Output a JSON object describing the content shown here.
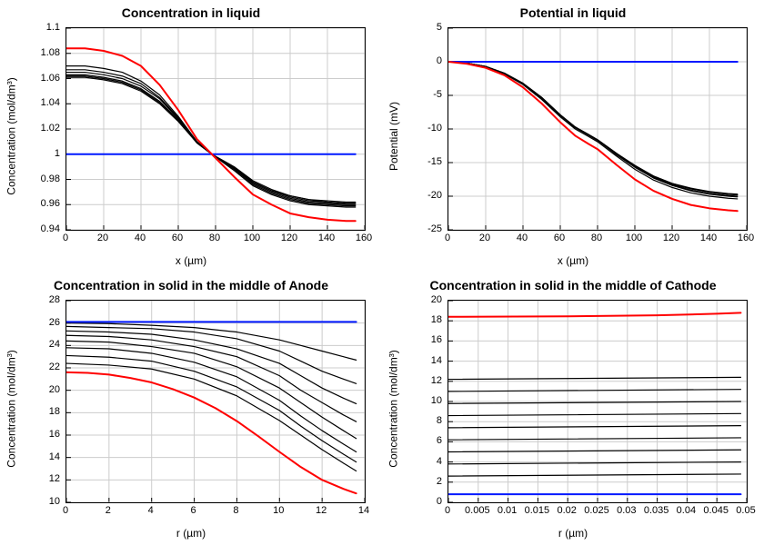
{
  "background_color": "#ffffff",
  "grid_color": "#cccccc",
  "axis_color": "#000000",
  "text_color": "#000000",
  "colors": {
    "blue": "#0018ff",
    "red": "#ff0000",
    "black": "#000000"
  },
  "line_width_thick": 2.0,
  "line_width_thin": 1.2,
  "font": {
    "title_size": 14,
    "label_size": 12,
    "tick_size": 11
  },
  "panels": {
    "conc_liquid": {
      "title": "Concentration in liquid",
      "xlabel": "x (µm)",
      "ylabel": "Concentration (mol/dm³)",
      "xlim": [
        0,
        160
      ],
      "xtick_step": 20,
      "ylim": [
        0.94,
        1.1
      ],
      "yticks": [
        0.94,
        0.96,
        0.98,
        1,
        1.02,
        1.04,
        1.06,
        1.08,
        1.1
      ],
      "blue_series": {
        "x": [
          0,
          155
        ],
        "y": [
          1.0,
          1.0
        ]
      },
      "red_series": {
        "x": [
          0,
          10,
          20,
          30,
          40,
          50,
          60,
          70,
          78,
          90,
          100,
          110,
          120,
          130,
          140,
          150,
          155
        ],
        "y": [
          1.084,
          1.084,
          1.082,
          1.078,
          1.07,
          1.055,
          1.035,
          1.012,
          1.0,
          0.982,
          0.968,
          0.96,
          0.953,
          0.95,
          0.948,
          0.947,
          0.947
        ]
      },
      "black_series": [
        {
          "x": [
            0,
            10,
            20,
            30,
            40,
            50,
            60,
            70,
            78,
            90,
            100,
            110,
            120,
            130,
            140,
            150,
            155
          ],
          "y": [
            1.07,
            1.07,
            1.068,
            1.065,
            1.058,
            1.047,
            1.03,
            1.01,
            1.0,
            0.987,
            0.975,
            0.968,
            0.963,
            0.96,
            0.959,
            0.958,
            0.958
          ]
        },
        {
          "x": [
            0,
            10,
            20,
            30,
            40,
            50,
            60,
            70,
            78,
            90,
            100,
            110,
            120,
            130,
            140,
            150,
            155
          ],
          "y": [
            1.067,
            1.067,
            1.065,
            1.062,
            1.056,
            1.045,
            1.029,
            1.01,
            1.0,
            0.988,
            0.976,
            0.969,
            0.964,
            0.961,
            0.96,
            0.959,
            0.959
          ]
        },
        {
          "x": [
            0,
            10,
            20,
            30,
            40,
            50,
            60,
            70,
            78,
            90,
            100,
            110,
            120,
            130,
            140,
            150,
            155
          ],
          "y": [
            1.065,
            1.065,
            1.063,
            1.06,
            1.054,
            1.044,
            1.028,
            1.009,
            1.0,
            0.989,
            0.977,
            0.97,
            0.965,
            0.962,
            0.961,
            0.96,
            0.96
          ]
        },
        {
          "x": [
            0,
            10,
            20,
            30,
            40,
            50,
            60,
            70,
            78,
            90,
            100,
            110,
            120,
            130,
            140,
            150,
            155
          ],
          "y": [
            1.063,
            1.063,
            1.061,
            1.058,
            1.052,
            1.042,
            1.027,
            1.009,
            1.0,
            0.989,
            0.978,
            0.971,
            0.966,
            0.963,
            0.962,
            0.961,
            0.961
          ]
        },
        {
          "x": [
            0,
            10,
            20,
            30,
            40,
            50,
            60,
            70,
            78,
            90,
            100,
            110,
            120,
            130,
            140,
            150,
            155
          ],
          "y": [
            1.062,
            1.062,
            1.06,
            1.057,
            1.051,
            1.041,
            1.027,
            1.009,
            1.0,
            0.989,
            0.978,
            0.971,
            0.967,
            0.964,
            0.962,
            0.961,
            0.961
          ]
        },
        {
          "x": [
            0,
            10,
            20,
            30,
            40,
            50,
            60,
            70,
            78,
            90,
            100,
            110,
            120,
            130,
            140,
            150,
            155
          ],
          "y": [
            1.061,
            1.061,
            1.059,
            1.056,
            1.05,
            1.04,
            1.026,
            1.009,
            1.0,
            0.99,
            0.979,
            0.972,
            0.967,
            0.964,
            0.963,
            0.962,
            0.962
          ]
        }
      ]
    },
    "potential_liquid": {
      "title": "Potential in liquid",
      "xlabel": "x (µm)",
      "ylabel": "Potential (mV)",
      "xlim": [
        0,
        160
      ],
      "xtick_step": 20,
      "ylim": [
        -25,
        5
      ],
      "yticks": [
        -25,
        -20,
        -15,
        -10,
        -5,
        0,
        5
      ],
      "blue_series": {
        "x": [
          0,
          155
        ],
        "y": [
          0,
          0
        ]
      },
      "red_series": {
        "x": [
          0,
          10,
          20,
          30,
          40,
          50,
          60,
          68,
          75,
          80,
          90,
          100,
          110,
          120,
          130,
          140,
          150,
          155
        ],
        "y": [
          0,
          -0.3,
          -0.9,
          -2.0,
          -3.8,
          -6.2,
          -9.0,
          -11.0,
          -12.2,
          -13.0,
          -15.3,
          -17.5,
          -19.2,
          -20.4,
          -21.3,
          -21.8,
          -22.1,
          -22.2
        ]
      },
      "black_series": [
        {
          "x": [
            0,
            10,
            20,
            30,
            40,
            50,
            60,
            68,
            75,
            80,
            90,
            100,
            110,
            120,
            130,
            140,
            150,
            155
          ],
          "y": [
            0,
            -0.2,
            -0.8,
            -1.8,
            -3.4,
            -5.6,
            -8.2,
            -10.0,
            -11.1,
            -11.9,
            -14.0,
            -16.0,
            -17.6,
            -18.7,
            -19.5,
            -20.0,
            -20.3,
            -20.4
          ]
        },
        {
          "x": [
            0,
            10,
            20,
            30,
            40,
            50,
            60,
            68,
            75,
            80,
            90,
            100,
            110,
            120,
            130,
            140,
            150,
            155
          ],
          "y": [
            0,
            -0.2,
            -0.7,
            -1.7,
            -3.3,
            -5.4,
            -8.0,
            -9.8,
            -10.9,
            -11.7,
            -13.7,
            -15.6,
            -17.2,
            -18.3,
            -19.1,
            -19.6,
            -19.9,
            -20.0
          ]
        },
        {
          "x": [
            0,
            10,
            20,
            30,
            40,
            50,
            60,
            68,
            75,
            80,
            90,
            100,
            110,
            120,
            130,
            140,
            150,
            155
          ],
          "y": [
            0,
            -0.2,
            -0.7,
            -1.7,
            -3.2,
            -5.3,
            -7.9,
            -9.7,
            -10.8,
            -11.6,
            -13.6,
            -15.5,
            -17.0,
            -18.1,
            -18.9,
            -19.4,
            -19.7,
            -19.8
          ]
        },
        {
          "x": [
            0,
            10,
            20,
            30,
            40,
            50,
            60,
            68,
            75,
            80,
            90,
            100,
            110,
            120,
            130,
            140,
            150,
            155
          ],
          "y": [
            0,
            -0.2,
            -0.7,
            -1.7,
            -3.2,
            -5.3,
            -7.9,
            -9.7,
            -10.8,
            -11.6,
            -13.6,
            -15.4,
            -17.0,
            -18.1,
            -18.8,
            -19.3,
            -19.6,
            -19.7
          ]
        },
        {
          "x": [
            0,
            10,
            20,
            30,
            40,
            50,
            60,
            68,
            75,
            80,
            90,
            100,
            110,
            120,
            130,
            140,
            150,
            155
          ],
          "y": [
            0,
            -0.2,
            -0.7,
            -1.7,
            -3.2,
            -5.3,
            -7.9,
            -9.7,
            -10.8,
            -11.6,
            -13.6,
            -15.5,
            -17.1,
            -18.2,
            -18.9,
            -19.4,
            -19.7,
            -19.8
          ]
        },
        {
          "x": [
            0,
            10,
            20,
            30,
            40,
            50,
            60,
            68,
            75,
            80,
            90,
            100,
            110,
            120,
            130,
            140,
            150,
            155
          ],
          "y": [
            0,
            -0.2,
            -0.7,
            -1.8,
            -3.3,
            -5.4,
            -8.0,
            -9.8,
            -10.9,
            -11.7,
            -13.8,
            -15.7,
            -17.3,
            -18.4,
            -19.2,
            -19.7,
            -20.0,
            -20.1
          ]
        }
      ]
    },
    "conc_anode": {
      "title": "Concentration in solid in the middle of Anode",
      "xlabel": "r (µm)",
      "ylabel": "Concentration (mol/dm³)",
      "xlim": [
        0,
        14
      ],
      "xtick_step": 2,
      "ylim": [
        10,
        28
      ],
      "yticks": [
        10,
        12,
        14,
        16,
        18,
        20,
        22,
        24,
        26,
        28
      ],
      "blue_series": {
        "x": [
          0,
          13.6
        ],
        "y": [
          26.1,
          26.1
        ]
      },
      "red_series": {
        "x": [
          0,
          1,
          2,
          3,
          4,
          5,
          6,
          7,
          8,
          9,
          10,
          11,
          12,
          13,
          13.6
        ],
        "y": [
          21.6,
          21.55,
          21.4,
          21.1,
          20.7,
          20.1,
          19.35,
          18.4,
          17.25,
          15.9,
          14.5,
          13.15,
          12.0,
          11.2,
          10.8
        ]
      },
      "black_series": [
        {
          "x": [
            0,
            2,
            4,
            6,
            8,
            10,
            11,
            12,
            13,
            13.6
          ],
          "y": [
            26.0,
            25.95,
            25.8,
            25.6,
            25.2,
            24.5,
            24.0,
            23.5,
            23.0,
            22.7
          ]
        },
        {
          "x": [
            0,
            2,
            4,
            6,
            8,
            10,
            11,
            12,
            13,
            13.6
          ],
          "y": [
            25.7,
            25.6,
            25.5,
            25.2,
            24.6,
            23.5,
            22.6,
            21.7,
            21.0,
            20.6
          ]
        },
        {
          "x": [
            0,
            2,
            4,
            6,
            8,
            10,
            11,
            12,
            13,
            13.6
          ],
          "y": [
            25.3,
            25.2,
            25.0,
            24.5,
            23.7,
            22.4,
            21.3,
            20.2,
            19.3,
            18.8
          ]
        },
        {
          "x": [
            0,
            2,
            4,
            6,
            8,
            10,
            11,
            12,
            13,
            13.6
          ],
          "y": [
            24.9,
            24.8,
            24.5,
            23.9,
            23.0,
            21.3,
            20.0,
            18.9,
            17.8,
            17.2
          ]
        },
        {
          "x": [
            0,
            2,
            4,
            6,
            8,
            10,
            11,
            12,
            13,
            13.6
          ],
          "y": [
            24.4,
            24.3,
            23.9,
            23.3,
            22.1,
            20.2,
            18.9,
            17.6,
            16.4,
            15.7
          ]
        },
        {
          "x": [
            0,
            2,
            4,
            6,
            8,
            10,
            11,
            12,
            13,
            13.6
          ],
          "y": [
            23.8,
            23.7,
            23.3,
            22.5,
            21.2,
            19.1,
            17.7,
            16.4,
            15.2,
            14.5
          ]
        },
        {
          "x": [
            0,
            2,
            4,
            6,
            8,
            10,
            11,
            12,
            13,
            13.6
          ],
          "y": [
            23.1,
            22.95,
            22.6,
            21.7,
            20.3,
            18.2,
            16.8,
            15.5,
            14.3,
            13.6
          ]
        },
        {
          "x": [
            0,
            2,
            4,
            6,
            8,
            10,
            11,
            12,
            13,
            13.6
          ],
          "y": [
            22.4,
            22.25,
            21.9,
            21.0,
            19.5,
            17.3,
            16.0,
            14.7,
            13.5,
            12.8
          ]
        }
      ]
    },
    "conc_cathode": {
      "title": "Concentration in solid in the middle of Cathode",
      "xlabel": "r (µm)",
      "ylabel": "Concentration (mol/dm³)",
      "xlim": [
        0,
        0.05
      ],
      "xticks": [
        0,
        0.005,
        0.01,
        0.015,
        0.02,
        0.025,
        0.03,
        0.035,
        0.04,
        0.045,
        0.05
      ],
      "xtick_labels": [
        "0",
        "0.005",
        "0.01",
        "0.015",
        "0.02",
        "0.025",
        "0.03",
        "0.035",
        "0.04",
        "0.045",
        "0.05"
      ],
      "ylim": [
        0,
        20
      ],
      "yticks": [
        0,
        2,
        4,
        6,
        8,
        10,
        12,
        14,
        16,
        18,
        20
      ],
      "blue_series": {
        "x": [
          0,
          0.049
        ],
        "y": [
          0.8,
          0.8
        ]
      },
      "red_series": {
        "x": [
          0,
          0.02,
          0.035,
          0.045,
          0.049
        ],
        "y": [
          18.4,
          18.45,
          18.55,
          18.7,
          18.8
        ]
      },
      "black_series": [
        {
          "x": [
            0,
            0.049
          ],
          "y": [
            12.2,
            12.4
          ]
        },
        {
          "x": [
            0,
            0.049
          ],
          "y": [
            11.0,
            11.2
          ]
        },
        {
          "x": [
            0,
            0.049
          ],
          "y": [
            9.8,
            10.0
          ]
        },
        {
          "x": [
            0,
            0.049
          ],
          "y": [
            8.6,
            8.8
          ]
        },
        {
          "x": [
            0,
            0.049
          ],
          "y": [
            7.4,
            7.6
          ]
        },
        {
          "x": [
            0,
            0.049
          ],
          "y": [
            6.2,
            6.4
          ]
        },
        {
          "x": [
            0,
            0.049
          ],
          "y": [
            5.0,
            5.2
          ]
        },
        {
          "x": [
            0,
            0.049
          ],
          "y": [
            3.8,
            4.0
          ]
        },
        {
          "x": [
            0,
            0.049
          ],
          "y": [
            2.6,
            2.8
          ]
        }
      ]
    }
  }
}
